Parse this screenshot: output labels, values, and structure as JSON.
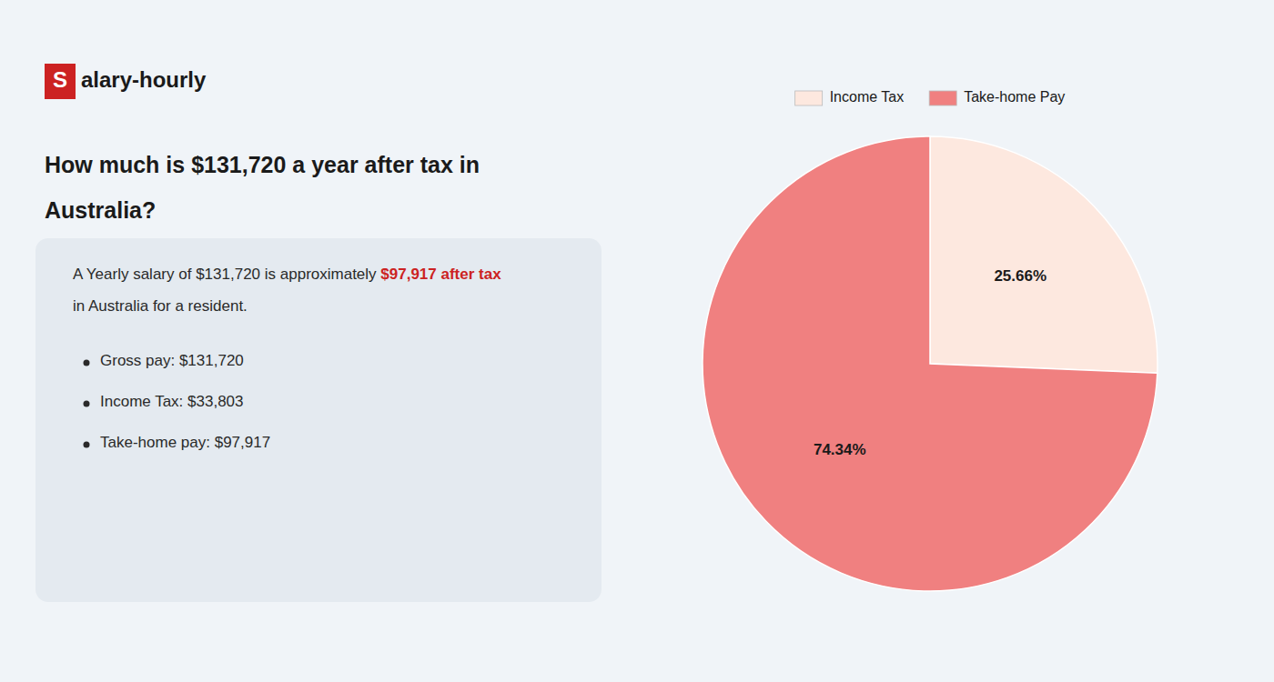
{
  "chart_data": {
    "type": "pie",
    "title": [
      "How much is $131,720 a year after tax in",
      "Australia?"
    ],
    "annotations": [
      "S",
      "alary-hourly",
      "A Yearly salary of $131,720 is approximately ",
      "$97,917 after tax",
      "in Australia for a resident.",
      "Gross pay: $131,720",
      "Income Tax: $33,803",
      "Take-home pay: $97,917"
    ],
    "categories": [
      "Income Tax",
      "Take-home Pay"
    ],
    "values": [
      25.66,
      74.34
    ],
    "value_labels": [
      "25.66%",
      "74.34%"
    ],
    "colors": [
      "#fde8df",
      "#f08080"
    ],
    "data_labels": true,
    "legend": "top"
  }
}
